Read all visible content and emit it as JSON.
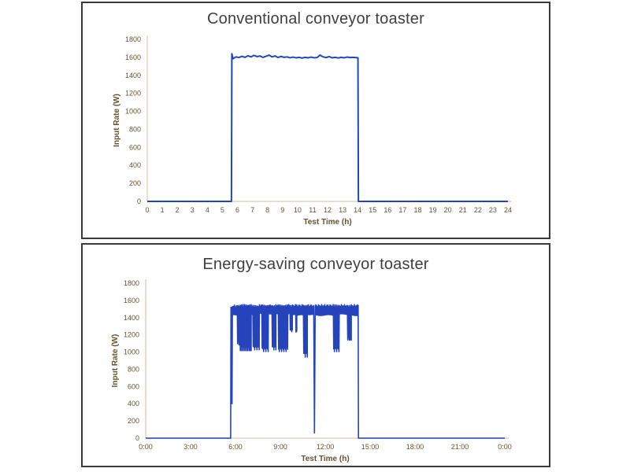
{
  "figure": {
    "description": "Two stacked line charts comparing toaster power input over a 24 hour test",
    "panel_border_color": "#3a3a3a",
    "axis_line_color": "#ddd3bf",
    "tick_color": "#64522f",
    "title_color": "#3f3f3f"
  },
  "chart_data": [
    {
      "type": "line",
      "title": "Conventional conveyor toaster",
      "xlabel": "Test Time (h)",
      "ylabel": "Input Rate (W)",
      "xlim": [
        0,
        24
      ],
      "ylim": [
        0,
        1800
      ],
      "grid": false,
      "legend": "none",
      "line_color": "#2544bb",
      "xtick_values": [
        0,
        1,
        2,
        3,
        4,
        5,
        6,
        7,
        8,
        9,
        10,
        11,
        12,
        13,
        14,
        15,
        16,
        17,
        18,
        19,
        20,
        21,
        22,
        23,
        24
      ],
      "xtick_labels": [
        "0",
        "1",
        "2",
        "3",
        "4",
        "5",
        "6",
        "7",
        "8",
        "9",
        "10",
        "11",
        "12",
        "13",
        "14",
        "15",
        "16",
        "17",
        "18",
        "19",
        "20",
        "21",
        "22",
        "23",
        "24"
      ],
      "ytick_values": [
        0,
        200,
        400,
        600,
        800,
        1000,
        1200,
        1400,
        1600,
        1800
      ],
      "ytick_labels": [
        "0",
        "200",
        "400",
        "600",
        "800",
        "1000",
        "1200",
        "1400",
        "1600",
        "1800"
      ],
      "series": [
        {
          "name": "Input rate",
          "points": [
            [
              0,
              0
            ],
            [
              5.6,
              0
            ],
            [
              5.63,
              1640
            ],
            [
              5.7,
              1585
            ],
            [
              5.9,
              1605
            ],
            [
              6.1,
              1598
            ],
            [
              6.3,
              1612
            ],
            [
              6.5,
              1600
            ],
            [
              6.7,
              1618
            ],
            [
              6.9,
              1605
            ],
            [
              7.1,
              1622
            ],
            [
              7.3,
              1608
            ],
            [
              7.5,
              1615
            ],
            [
              7.7,
              1600
            ],
            [
              7.9,
              1612
            ],
            [
              8.1,
              1625
            ],
            [
              8.3,
              1605
            ],
            [
              8.5,
              1615
            ],
            [
              8.7,
              1598
            ],
            [
              8.9,
              1610
            ],
            [
              9.1,
              1600
            ],
            [
              9.3,
              1605
            ],
            [
              9.5,
              1595
            ],
            [
              9.7,
              1603
            ],
            [
              9.9,
              1595
            ],
            [
              10.1,
              1600
            ],
            [
              10.3,
              1592
            ],
            [
              10.5,
              1600
            ],
            [
              10.7,
              1595
            ],
            [
              10.9,
              1603
            ],
            [
              11.1,
              1595
            ],
            [
              11.3,
              1598
            ],
            [
              11.5,
              1625
            ],
            [
              11.7,
              1605
            ],
            [
              11.9,
              1598
            ],
            [
              12.1,
              1608
            ],
            [
              12.3,
              1595
            ],
            [
              12.5,
              1600
            ],
            [
              12.7,
              1593
            ],
            [
              12.9,
              1600
            ],
            [
              13.1,
              1595
            ],
            [
              13.3,
              1603
            ],
            [
              13.5,
              1598
            ],
            [
              13.7,
              1600
            ],
            [
              13.9,
              1597
            ],
            [
              14.02,
              1595
            ],
            [
              14.05,
              0
            ],
            [
              24,
              0
            ]
          ]
        }
      ]
    },
    {
      "type": "line",
      "title": "Energy-saving conveyor toaster",
      "xlabel": "Test Time (h)",
      "ylabel": "Input Rate (W)",
      "xlim": [
        0,
        24
      ],
      "ylim": [
        0,
        1800
      ],
      "grid": false,
      "legend": "none",
      "line_color": "#2544bb",
      "xtick_values": [
        0,
        3,
        6,
        9,
        12,
        15,
        18,
        21,
        24
      ],
      "xtick_labels": [
        "0:00",
        "3:00",
        "6:00",
        "9:00",
        "12:00",
        "15:00",
        "18:00",
        "21:00",
        "0:00"
      ],
      "ytick_values": [
        0,
        200,
        400,
        600,
        800,
        1000,
        1200,
        1400,
        1600,
        1800
      ],
      "ytick_labels": [
        "0",
        "200",
        "400",
        "600",
        "800",
        "1000",
        "1200",
        "1400",
        "1600",
        "1800"
      ],
      "series": [
        {
          "name": "Input rate",
          "segments": [
            {
              "kind": "flat",
              "t0": 0,
              "t1": 5.68,
              "v": 0
            },
            {
              "kind": "band",
              "t0": 5.7,
              "t1": 5.74,
              "top": 1520,
              "bottom": 1470,
              "period": 0.04
            },
            {
              "kind": "spike",
              "t": 5.77,
              "v": 400,
              "w": 0.05,
              "from": 1500
            },
            {
              "kind": "band",
              "t0": 5.8,
              "t1": 6.12,
              "top": 1535,
              "bottom": 1430,
              "period": 0.07
            },
            {
              "kind": "band",
              "t0": 6.12,
              "t1": 6.24,
              "top": 1530,
              "bottom": 1100,
              "period": 0.05
            },
            {
              "kind": "band",
              "t0": 6.24,
              "t1": 6.3,
              "top": 1535,
              "bottom": 1450,
              "period": 0.06
            },
            {
              "kind": "band",
              "t0": 6.3,
              "t1": 7.05,
              "top": 1540,
              "bottom": 1030,
              "period": 0.05
            },
            {
              "kind": "band",
              "t0": 7.05,
              "t1": 7.16,
              "top": 1535,
              "bottom": 1440,
              "period": 0.06
            },
            {
              "kind": "band",
              "t0": 7.16,
              "t1": 7.6,
              "top": 1530,
              "bottom": 1050,
              "period": 0.05
            },
            {
              "kind": "band",
              "t0": 7.6,
              "t1": 7.76,
              "top": 1540,
              "bottom": 1450,
              "period": 0.06
            },
            {
              "kind": "band",
              "t0": 7.76,
              "t1": 8.2,
              "top": 1535,
              "bottom": 1030,
              "period": 0.05
            },
            {
              "kind": "band",
              "t0": 8.2,
              "t1": 8.44,
              "top": 1540,
              "bottom": 1440,
              "period": 0.07
            },
            {
              "kind": "band",
              "t0": 8.44,
              "t1": 8.7,
              "top": 1530,
              "bottom": 1050,
              "period": 0.05
            },
            {
              "kind": "band",
              "t0": 8.7,
              "t1": 8.86,
              "top": 1540,
              "bottom": 1450,
              "period": 0.06
            },
            {
              "kind": "band",
              "t0": 8.86,
              "t1": 9.5,
              "top": 1535,
              "bottom": 1030,
              "period": 0.05
            },
            {
              "kind": "band",
              "t0": 9.5,
              "t1": 9.64,
              "top": 1540,
              "bottom": 1445,
              "period": 0.06
            },
            {
              "kind": "band",
              "t0": 9.64,
              "t1": 9.8,
              "top": 1530,
              "bottom": 1250,
              "period": 0.05
            },
            {
              "kind": "band",
              "t0": 9.8,
              "t1": 10.02,
              "top": 1540,
              "bottom": 1435,
              "period": 0.07
            },
            {
              "kind": "band",
              "t0": 10.02,
              "t1": 10.1,
              "top": 1535,
              "bottom": 1230,
              "period": 0.05
            },
            {
              "kind": "band",
              "t0": 10.1,
              "t1": 10.54,
              "top": 1540,
              "bottom": 1430,
              "period": 0.07
            },
            {
              "kind": "band",
              "t0": 10.54,
              "t1": 10.8,
              "top": 1535,
              "bottom": 970,
              "period": 0.05
            },
            {
              "kind": "band",
              "t0": 10.8,
              "t1": 11.22,
              "top": 1540,
              "bottom": 1440,
              "period": 0.07
            },
            {
              "kind": "spike",
              "t": 11.28,
              "v": 60,
              "w": 0.1,
              "from": 1520
            },
            {
              "kind": "band",
              "t0": 11.34,
              "t1": 12.54,
              "top": 1540,
              "bottom": 1430,
              "period": 0.07
            },
            {
              "kind": "band",
              "t0": 12.54,
              "t1": 12.94,
              "top": 1535,
              "bottom": 1030,
              "period": 0.05
            },
            {
              "kind": "band",
              "t0": 12.94,
              "t1": 13.48,
              "top": 1540,
              "bottom": 1440,
              "period": 0.07
            },
            {
              "kind": "band",
              "t0": 13.48,
              "t1": 13.74,
              "top": 1530,
              "bottom": 1150,
              "period": 0.05
            },
            {
              "kind": "band",
              "t0": 13.74,
              "t1": 14.2,
              "top": 1540,
              "bottom": 1430,
              "period": 0.07
            },
            {
              "kind": "flat",
              "t0": 14.22,
              "t1": 24,
              "v": 0
            }
          ]
        }
      ]
    }
  ]
}
